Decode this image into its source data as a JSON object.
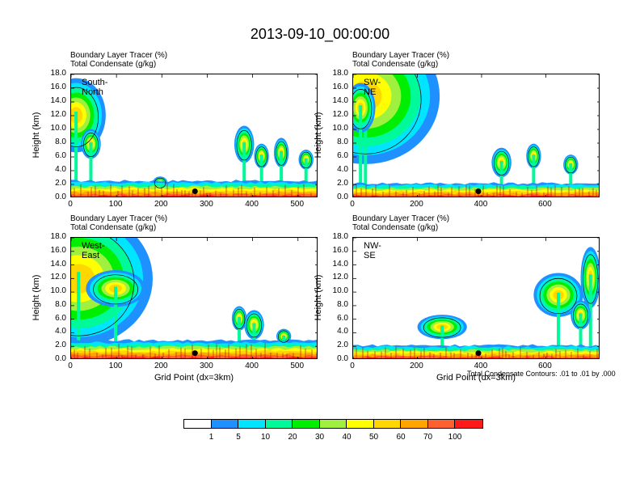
{
  "title": "2013-09-10_00:00:00",
  "variables": [
    "Boundary Layer Tracer   (%)",
    "Total Condensate   (g/kg)"
  ],
  "y_axis": {
    "label": "Height (km)",
    "ticks": [
      "0.0",
      "2.0",
      "4.0",
      "6.0",
      "8.0",
      "10.0",
      "12.0",
      "14.0",
      "16.0",
      "18.0"
    ]
  },
  "x_axis_label": "Grid Point (dx=3km)",
  "contour_note": "Total Condensate Contours: .01 to .01 by .000",
  "colorbar": {
    "colors": [
      "#ffffff",
      "#1e90ff",
      "#00e5ff",
      "#00fa9a",
      "#00ee00",
      "#a0f040",
      "#ffff00",
      "#ffd700",
      "#ffa500",
      "#ff6030",
      "#ff1a1a"
    ],
    "labels": [
      "1",
      "5",
      "10",
      "20",
      "30",
      "40",
      "50",
      "60",
      "70",
      "100"
    ]
  },
  "chart_data": [
    {
      "type": "heatmap",
      "panel": "South-North",
      "x_ticks": [
        "0",
        "100",
        "200",
        "300",
        "400",
        "500"
      ],
      "xlim": [
        0,
        545
      ],
      "ylim": [
        0,
        18
      ],
      "marker_x": 273,
      "marker_y": 1.0
    },
    {
      "type": "heatmap",
      "panel": "SW-NE",
      "x_ticks": [
        "0",
        "200",
        "400",
        "600"
      ],
      "xlim": [
        0,
        770
      ],
      "ylim": [
        0,
        18
      ],
      "marker_x": 390,
      "marker_y": 1.0
    },
    {
      "type": "heatmap",
      "panel": "West-East",
      "x_ticks": [
        "0",
        "100",
        "200",
        "300",
        "400",
        "500"
      ],
      "xlim": [
        0,
        545
      ],
      "ylim": [
        0,
        18
      ],
      "marker_x": 273,
      "marker_y": 1.0
    },
    {
      "type": "heatmap",
      "panel": "NW-SE",
      "x_ticks": [
        "0",
        "200",
        "400",
        "600"
      ],
      "xlim": [
        0,
        770
      ],
      "ylim": [
        0,
        18
      ],
      "marker_x": 390,
      "marker_y": 1.0
    }
  ]
}
